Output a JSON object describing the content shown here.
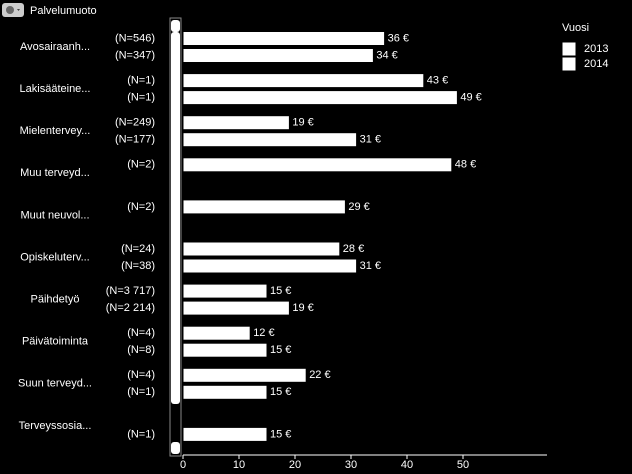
{
  "header": {
    "title": "Palvelumuoto"
  },
  "chart_data": {
    "type": "bar",
    "orientation": "horizontal",
    "categories": [
      "Avosairaanh...",
      "Lakisääteine...",
      "Mielentervey...",
      "Muu terveyd...",
      "Muut neuvol...",
      "Opiskeluterv...",
      "Päihdetyö",
      "Päivätoiminta",
      "Suun terveyd...",
      "Terveyssosia..."
    ],
    "legend_title": "Vuosi",
    "series": [
      {
        "name": "2013",
        "color": "#ffffff",
        "values": [
          36,
          43,
          19,
          48,
          29,
          28,
          15,
          12,
          22,
          null
        ],
        "value_labels": [
          "36 €",
          "43 €",
          "19 €",
          "48 €",
          "29 €",
          "28 €",
          "15 €",
          "12 €",
          "22 €",
          null
        ],
        "sample_labels": [
          "(N=546)",
          "(N=1)",
          "(N=249)",
          "(N=2)",
          "(N=2)",
          "(N=24)",
          "(N=3 717)",
          "(N=4)",
          "(N=4)",
          null
        ]
      },
      {
        "name": "2014",
        "color": "#ffffff",
        "values": [
          34,
          49,
          31,
          null,
          null,
          31,
          19,
          15,
          15,
          15
        ],
        "value_labels": [
          "34 €",
          "49 €",
          "31 €",
          null,
          null,
          "31 €",
          "19 €",
          "15 €",
          "15 €",
          "15 €"
        ],
        "sample_labels": [
          "(N=347)",
          "(N=1)",
          "(N=177)",
          null,
          null,
          "(N=38)",
          "(N=2 214)",
          "(N=8)",
          "(N=1)",
          "(N=1)"
        ]
      }
    ],
    "xlim": [
      0,
      65
    ],
    "xticks": [
      0,
      10,
      20,
      30,
      40,
      50
    ],
    "grid": false
  }
}
